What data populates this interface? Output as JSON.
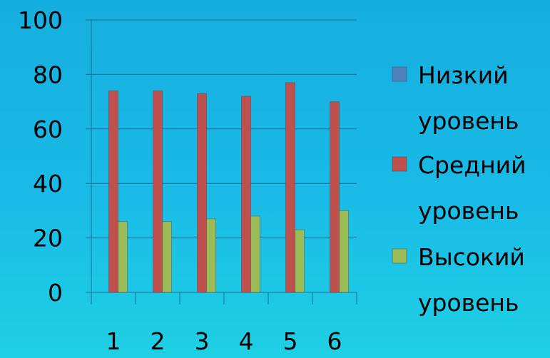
{
  "chart_data": {
    "type": "bar",
    "title": "",
    "xlabel": "",
    "ylabel": "",
    "categories": [
      "1",
      "2",
      "3",
      "4",
      "5",
      "6"
    ],
    "ylim": [
      0,
      100
    ],
    "yticks": [
      "0",
      "20",
      "40",
      "60",
      "80",
      "100"
    ],
    "grid": true,
    "legend_position": "right",
    "series": [
      {
        "name_lines": [
          "Низкий",
          "уровень"
        ],
        "color": "#4f81bd",
        "values": [
          0,
          0,
          0,
          0,
          0,
          0
        ]
      },
      {
        "name_lines": [
          "Средний",
          "уровень"
        ],
        "color": "#c0504d",
        "values": [
          74,
          74,
          73,
          72,
          77,
          70
        ]
      },
      {
        "name_lines": [
          "Высокий",
          "уровень"
        ],
        "color": "#9bbb59",
        "values": [
          26,
          26,
          27,
          28,
          23,
          30
        ]
      }
    ]
  }
}
